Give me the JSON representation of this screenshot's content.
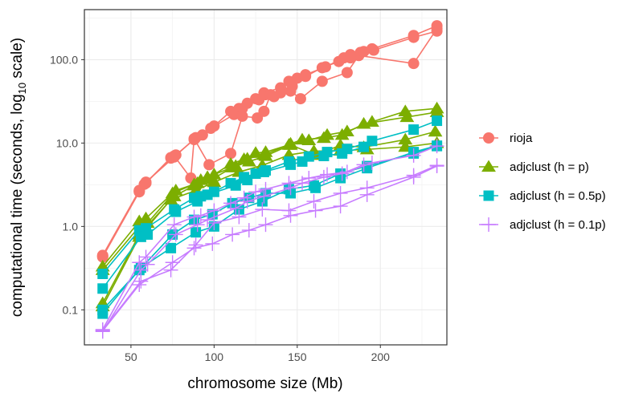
{
  "chart_data": {
    "type": "line",
    "xlabel": "chromosome size (Mb)",
    "ylabel_parts": [
      "computational time (seconds,  log",
      "10",
      "  scale)"
    ],
    "xlim": [
      22,
      240
    ],
    "ylim_log10": [
      -1.42,
      2.6
    ],
    "x_ticks": [
      50,
      100,
      150,
      200
    ],
    "x_tick_labels": [
      "50",
      "100",
      "150",
      "200"
    ],
    "y_ticks": [
      0.1,
      1,
      10,
      100
    ],
    "y_tick_labels": [
      "0.1",
      "1.0",
      "10.0",
      "100.0"
    ],
    "grid": true,
    "legend_position": "right",
    "series": [
      {
        "name": "rioja",
        "color": "#F8766D",
        "marker": "circle",
        "lines": [
          {
            "x": [
              33,
              55,
              59,
              76,
              89,
              100,
              110,
              115,
              120,
              125,
              130,
              140,
              145,
              150,
              155,
              167,
              178,
              182,
              188,
              195,
              220,
              234
            ],
            "y": [
              0.45,
              2.7,
              3.4,
              6.8,
              11.6,
              16,
              24,
              26,
              30,
              34,
              40,
              46,
              55,
              60,
              66,
              82,
              105,
              115,
              122,
              135,
              195,
              255
            ]
          },
          {
            "x": [
              33,
              55,
              58,
              74,
              77,
              88,
              93,
              98,
              112,
              117,
              127,
              131,
              136,
              146,
              152,
              165,
              180,
              187,
              220,
              234
            ],
            "y": [
              0.43,
              2.6,
              3.2,
              6.6,
              7.2,
              11,
              12.5,
              15,
              22,
              26,
              33,
              38,
              36,
              42,
              34,
              55,
              70,
              112,
              90,
              235
            ]
          },
          {
            "x": [
              33,
              55,
              59,
              74,
              76,
              86,
              88,
              97,
              110,
              117,
              126,
              130,
              134,
              140,
              147,
              155,
              165,
              175,
              182,
              190,
              196,
              220,
              234
            ],
            "y": [
              0.44,
              2.65,
              3.3,
              6.7,
              7,
              3.8,
              11.3,
              5.5,
              7.5,
              21,
              20,
              24,
              38,
              40,
              48,
              63,
              80,
              95,
              105,
              125,
              130,
              185,
              220
            ]
          }
        ]
      },
      {
        "name": "adjclust (h = p)",
        "color": "#7CAE00",
        "marker": "triangle",
        "lines": [
          {
            "x": [
              33,
              55,
              59,
              75,
              88,
              92,
              100,
              110,
              118,
              125,
              131,
              145,
              157,
              168,
              180,
              195,
              215,
              234
            ],
            "y": [
              0.33,
              1.15,
              1.25,
              2.5,
              3.2,
              3.6,
              4.2,
              5.6,
              6.4,
              7.6,
              7.8,
              9.5,
              10.8,
              12.5,
              13.8,
              18,
              24,
              26
            ]
          },
          {
            "x": [
              33,
              56,
              60,
              77,
              90,
              96,
              113,
              120,
              130,
              146,
              153,
              166,
              177,
              190,
              216,
              234
            ],
            "y": [
              0.3,
              1.05,
              1.1,
              2.7,
              3.3,
              3.9,
              5.3,
              6.5,
              7.2,
              9.8,
              11,
              11.5,
              12.5,
              17,
              20.5,
              23.5
            ]
          },
          {
            "x": [
              33,
              55,
              76,
              88,
              99,
              111,
              121,
              131,
              146,
              161,
              176,
              190,
              215,
              233
            ],
            "y": [
              0.12,
              0.8,
              2.3,
              3.1,
              3.7,
              5.1,
              6,
              7,
              9.5,
              7.2,
              9.4,
              8.9,
              11,
              13.7
            ]
          },
          {
            "x": [
              33,
              55,
              74,
              89,
              100,
              115,
              129,
              145,
              160,
              176,
              192,
              215,
              234
            ],
            "y": [
              0.11,
              0.75,
              2.1,
              2.7,
              3.4,
              4.5,
              5.4,
              7.2,
              8,
              8.1,
              8.4,
              9,
              10
            ]
          }
        ]
      },
      {
        "name": "adjclust (h = 0.5p)",
        "color": "#00BFC4",
        "marker": "square",
        "lines": [
          {
            "x": [
              33,
              55,
              59,
              76,
              88,
              92,
              100,
              110,
              118,
              125,
              131,
              145,
              157,
              168,
              180,
              195,
              220,
              234
            ],
            "y": [
              0.27,
              0.9,
              0.95,
              1.6,
              2.2,
              2.3,
              2.6,
              3.3,
              3.9,
              4.3,
              4.7,
              6,
              6.9,
              7.8,
              8.5,
              10.6,
              14.5,
              18.5
            ]
          },
          {
            "x": [
              33,
              56,
              60,
              77,
              90,
              96,
              113,
              120,
              130,
              146,
              153,
              166,
              177,
              190
            ],
            "y": [
              0.18,
              0.75,
              0.8,
              1.5,
              2,
              2.4,
              3.1,
              3.6,
              4.5,
              5.5,
              6,
              7,
              7.5,
              9
            ]
          },
          {
            "x": [
              33,
              55,
              75,
              88,
              99,
              111,
              121,
              131,
              146,
              161,
              176,
              192,
              220,
              234
            ],
            "y": [
              0.1,
              0.3,
              0.8,
              1.2,
              1.4,
              1.9,
              2.2,
              2.5,
              2.5,
              2.9,
              3.8,
              5,
              7.8,
              9.3
            ]
          },
          {
            "x": [
              33,
              56,
              74,
              89,
              100,
              115,
              129,
              145,
              160,
              176,
              192,
              220,
              234
            ],
            "y": [
              0.09,
              0.32,
              0.55,
              0.85,
              1,
              1.6,
              2,
              2.8,
              3.1,
              4.3,
              5.3,
              7.5,
              9.2
            ]
          }
        ]
      },
      {
        "name": "adjclust (h = 0.1p)",
        "color": "#C77CFF",
        "marker": "plus",
        "lines": [
          {
            "x": [
              33,
              55,
              59,
              76,
              88,
              92,
              100,
              110,
              118,
              125,
              131,
              145,
              157,
              168,
              180,
              195,
              220,
              234
            ],
            "y": [
              0.058,
              0.37,
              0.43,
              1.05,
              1.3,
              1.35,
              1.55,
              1.9,
              2.2,
              2.6,
              2.8,
              3.3,
              3.8,
              4.2,
              4.5,
              5.8,
              7.1,
              9.2
            ]
          },
          {
            "x": [
              33,
              56,
              60,
              77,
              90,
              96,
              113,
              120,
              130,
              146,
              153,
              166,
              177,
              190
            ],
            "y": [
              0.055,
              0.3,
              0.35,
              0.8,
              1.05,
              1.2,
              1.65,
              2,
              2.3,
              2.9,
              3.3,
              3.9,
              4.3,
              5.5
            ]
          },
          {
            "x": [
              33,
              55,
              75,
              88,
              99,
              111,
              121,
              131,
              146,
              161,
              176,
              192,
              220,
              234
            ],
            "y": [
              0.056,
              0.2,
              0.37,
              0.55,
              0.62,
              0.8,
              0.9,
              1.05,
              1.35,
              1.55,
              1.75,
              2.4,
              3.9,
              5.3
            ]
          },
          {
            "x": [
              33,
              56,
              74,
              89,
              100,
              115,
              129,
              145,
              160,
              176,
              192,
              220,
              234
            ],
            "y": [
              0.057,
              0.22,
              0.3,
              0.6,
              1.1,
              1.3,
              1.6,
              1.55,
              2,
              2.5,
              2.9,
              4.1,
              5.4
            ]
          }
        ]
      }
    ]
  }
}
